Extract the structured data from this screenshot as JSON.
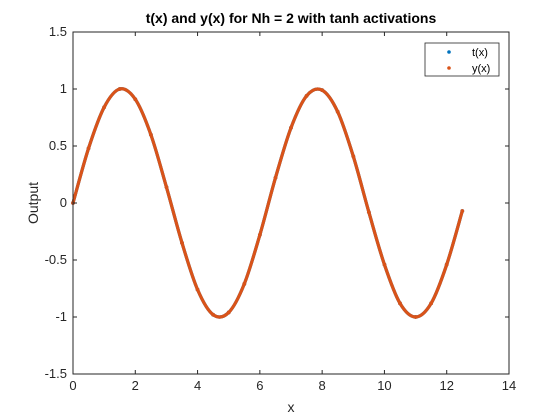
{
  "chart_data": {
    "type": "scatter",
    "title": "t(x) and y(x) for Nh = 2 with tanh activations",
    "xlabel": "x",
    "ylabel": "Output",
    "xlim": [
      0,
      14
    ],
    "ylim": [
      -1.5,
      1.5
    ],
    "xticks": [
      "0",
      "2",
      "4",
      "6",
      "8",
      "10",
      "12",
      "14"
    ],
    "yticks": [
      "-1.5",
      "-1",
      "-0.5",
      "0",
      "0.5",
      "1",
      "1.5"
    ],
    "grid": false,
    "legend_position": "top-right",
    "series": [
      {
        "name": "t(x)",
        "color": "#0072BD",
        "x": [
          0,
          0.5,
          1,
          1.5,
          2,
          2.5,
          3,
          3.5,
          4,
          4.5,
          5,
          5.5,
          6,
          6.5,
          7,
          7.5,
          8,
          8.5,
          9,
          9.5,
          10,
          10.5,
          11,
          11.5,
          12,
          12.5
        ],
        "y": [
          0,
          0.48,
          0.84,
          1.0,
          0.91,
          0.6,
          0.14,
          -0.35,
          -0.76,
          -0.98,
          -0.96,
          -0.71,
          -0.28,
          0.22,
          0.66,
          0.94,
          0.99,
          0.8,
          0.41,
          -0.08,
          -0.54,
          -0.88,
          -1.0,
          -0.88,
          -0.54,
          -0.07
        ]
      },
      {
        "name": "y(x)",
        "color": "#D95319",
        "x": [
          0,
          0.5,
          1,
          1.5,
          2,
          2.5,
          3,
          3.5,
          4,
          4.5,
          5,
          5.5,
          6,
          6.5,
          7,
          7.5,
          8,
          8.5,
          9,
          9.5,
          10,
          10.5,
          11,
          11.5,
          12,
          12.5
        ],
        "y": [
          0,
          0.48,
          0.84,
          1.0,
          0.91,
          0.6,
          0.14,
          -0.35,
          -0.76,
          -0.98,
          -0.96,
          -0.71,
          -0.28,
          0.22,
          0.66,
          0.94,
          0.99,
          0.8,
          0.41,
          -0.08,
          -0.54,
          -0.88,
          -1.0,
          -0.88,
          -0.54,
          -0.07
        ]
      }
    ]
  }
}
